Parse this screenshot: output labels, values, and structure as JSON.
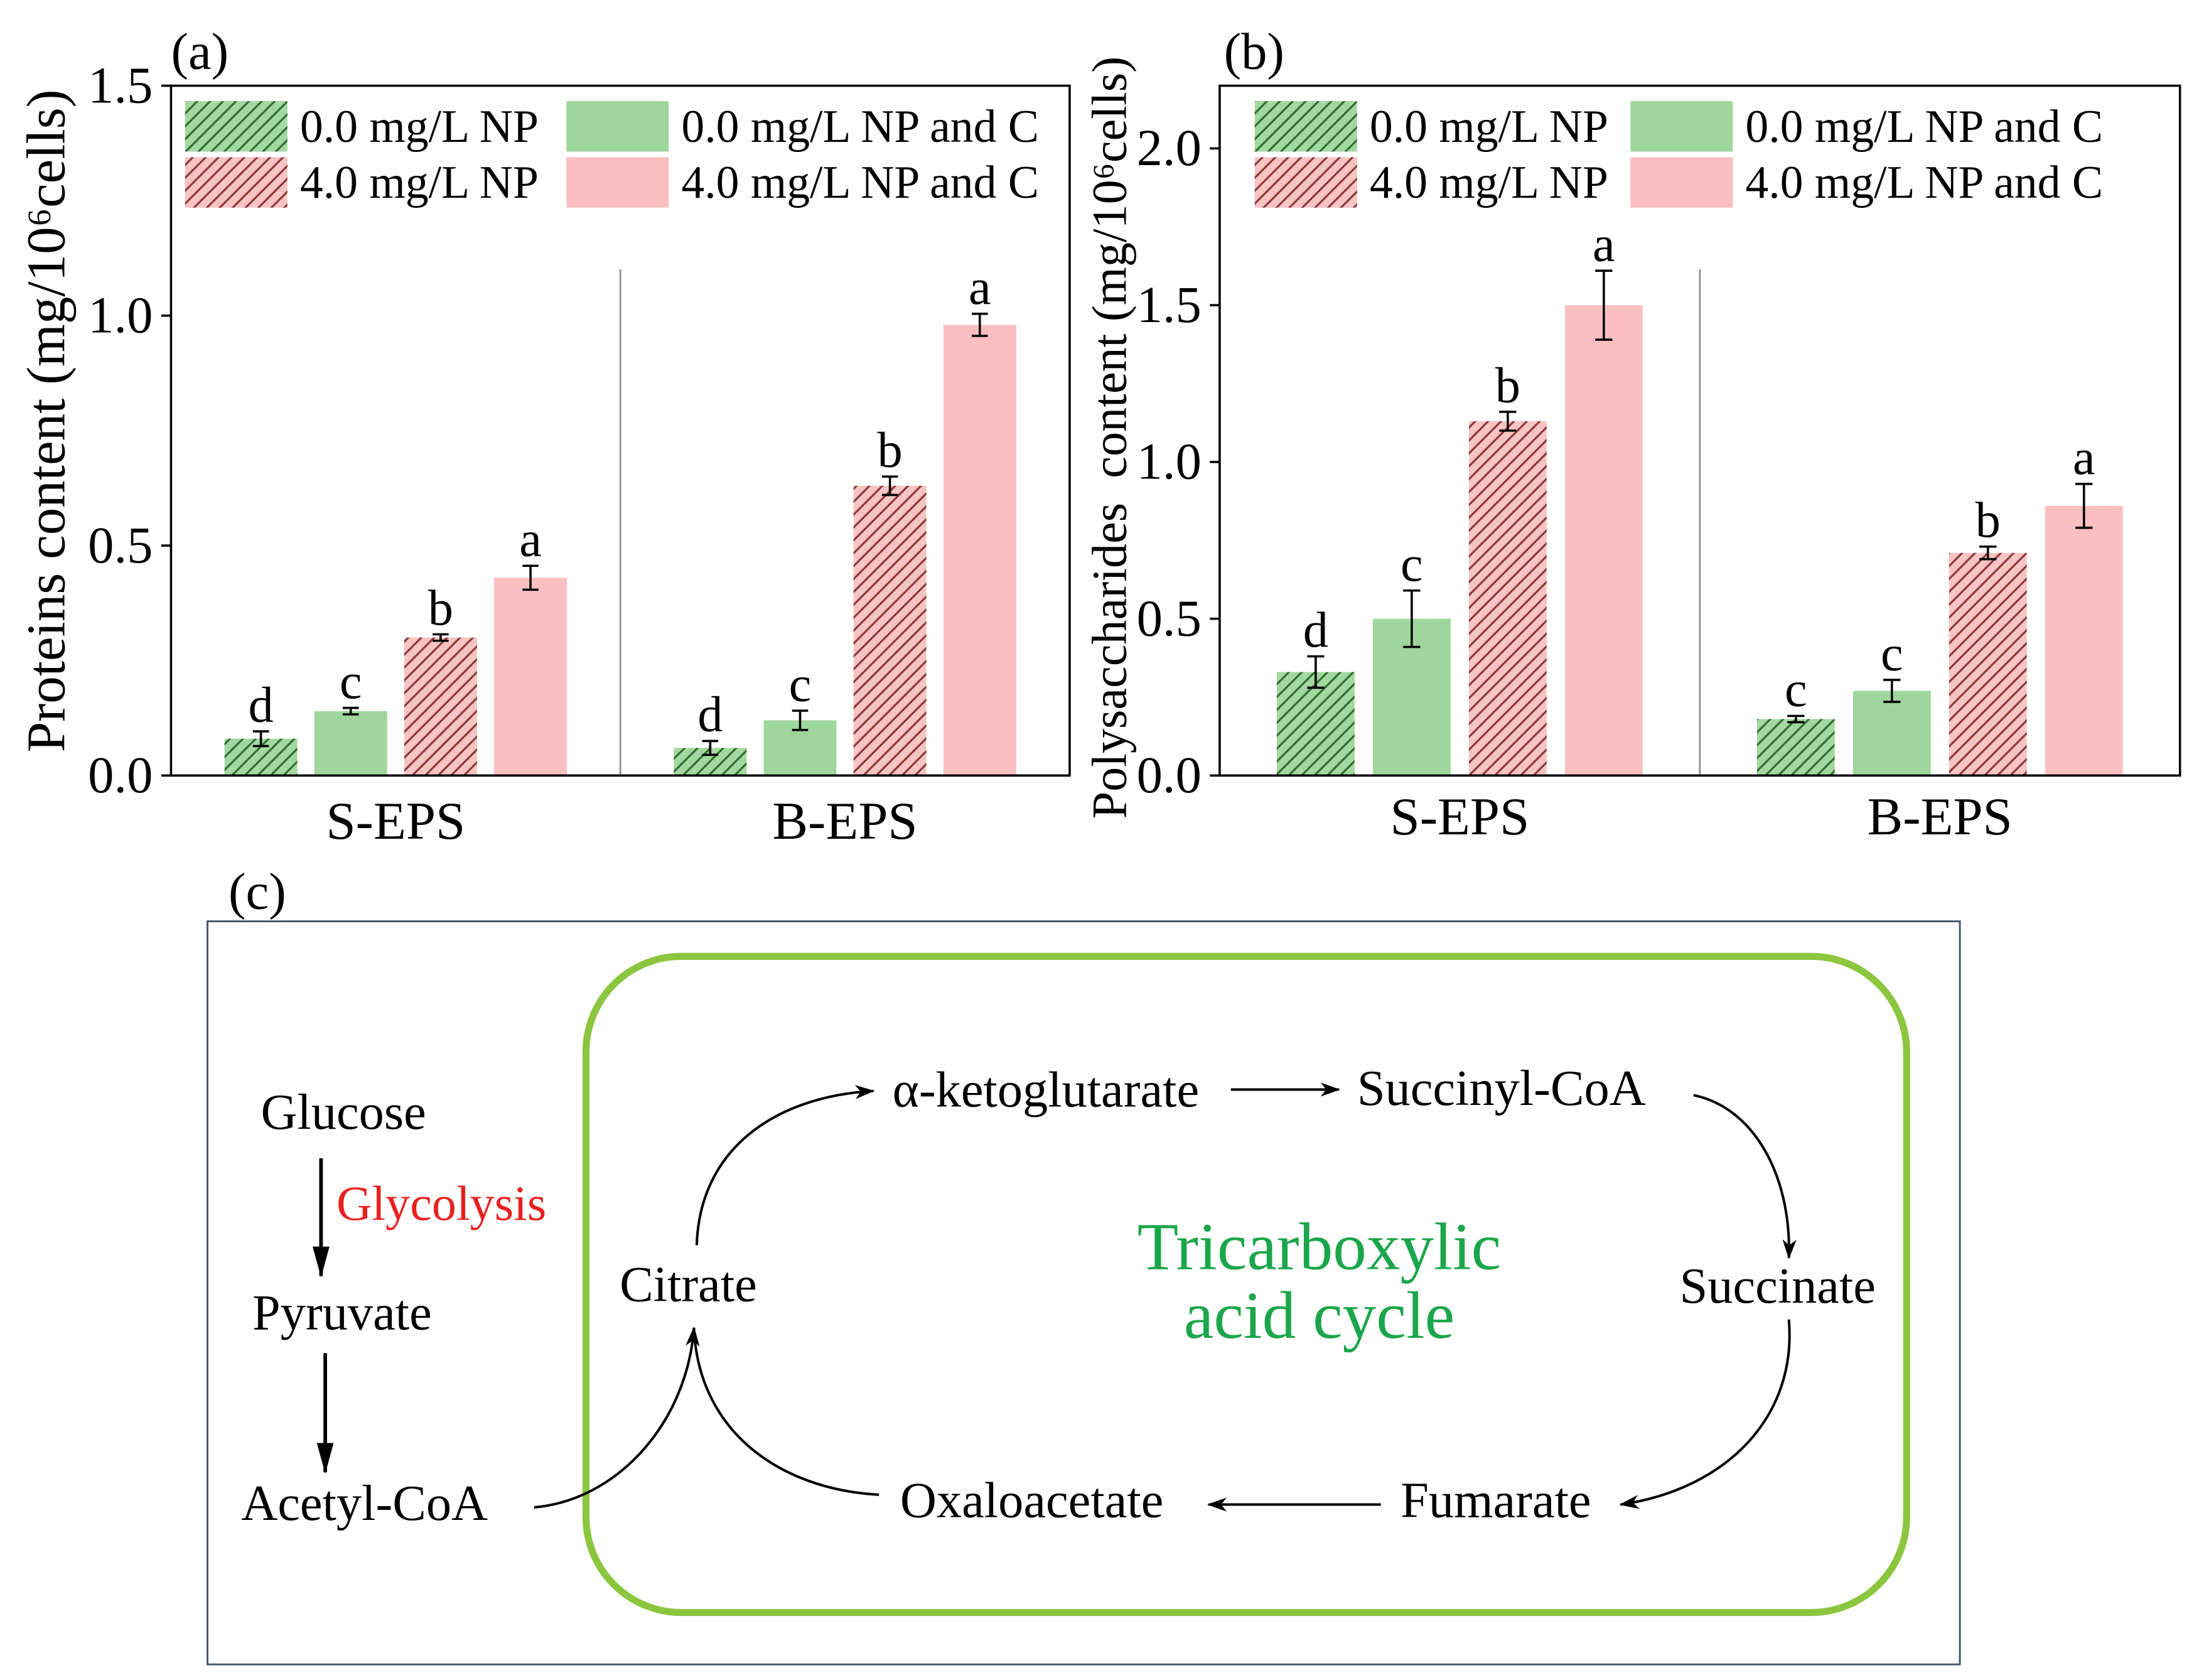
{
  "chart_data": [
    {
      "panel_label": "(a)",
      "type": "bar",
      "ylabel": "Proteins content (mg/10⁶cells)",
      "categories": [
        "S-EPS",
        "B-EPS"
      ],
      "ylim": [
        0,
        1.5
      ],
      "yticks": [
        0.0,
        0.5,
        1.0,
        1.5
      ],
      "ytick_labels": [
        "0.0",
        "0.5",
        "1.0",
        "1.5"
      ],
      "grid": false,
      "legend": {
        "location": "top-left",
        "columns": 2
      },
      "series": [
        {
          "name": "0.0 mg/L NP",
          "color": "#a3d8a0",
          "hatch_color": "#2e6b2e",
          "values": [
            0.08,
            0.06
          ],
          "errors": [
            0.016,
            0.015
          ],
          "letters": [
            "d",
            "d"
          ]
        },
        {
          "name": "0.0 mg/L NP and C",
          "color": "#9fd69c",
          "values": [
            0.14,
            0.12
          ],
          "errors": [
            0.007,
            0.021
          ],
          "letters": [
            "c",
            "c"
          ]
        },
        {
          "name": "4.0 mg/L NP",
          "color": "#f7c4c4",
          "hatch_color": "#8c3535",
          "values": [
            0.3,
            0.63
          ],
          "errors": [
            0.007,
            0.02
          ],
          "letters": [
            "b",
            "b"
          ]
        },
        {
          "name": "4.0 mg/L NP and C",
          "color": "#fac0c1",
          "values": [
            0.43,
            0.98
          ],
          "errors": [
            0.026,
            0.024
          ],
          "letters": [
            "a",
            "a"
          ]
        }
      ]
    },
    {
      "panel_label": "(b)",
      "type": "bar",
      "ylabel": "Polysaccharides  content (mg/10⁶cells)",
      "categories": [
        "S-EPS",
        "B-EPS"
      ],
      "ylim": [
        0,
        2.2
      ],
      "yticks": [
        0.0,
        0.5,
        1.0,
        1.5,
        2.0
      ],
      "ytick_labels": [
        "0.0",
        "0.5",
        "1.0",
        "1.5",
        "2.0"
      ],
      "grid": false,
      "legend": {
        "location": "top-left",
        "columns": 2
      },
      "series": [
        {
          "name": "0.0 mg/L NP",
          "color": "#a3d8a0",
          "hatch_color": "#2e6b2e",
          "values": [
            0.33,
            0.18
          ],
          "errors": [
            0.05,
            0.01
          ],
          "letters": [
            "d",
            "c"
          ]
        },
        {
          "name": "0.0 mg/L NP and C",
          "color": "#9fd69c",
          "values": [
            0.5,
            0.27
          ],
          "errors": [
            0.09,
            0.035
          ],
          "letters": [
            "c",
            "c"
          ]
        },
        {
          "name": "4.0 mg/L NP",
          "color": "#f7c4c4",
          "hatch_color": "#8c3535",
          "values": [
            1.13,
            0.71
          ],
          "errors": [
            0.03,
            0.02
          ],
          "letters": [
            "b",
            "b"
          ]
        },
        {
          "name": "4.0 mg/L NP and C",
          "color": "#fac0c1",
          "values": [
            1.5,
            0.86
          ],
          "errors": [
            0.11,
            0.07
          ],
          "letters": [
            "a",
            "a"
          ]
        }
      ]
    }
  ],
  "diagram": {
    "panel_label": "(c)",
    "cycle_title_line1": "Tricarboxylic",
    "cycle_title_line2": "acid cycle",
    "glycolysis_label": "Glycolysis",
    "nodes": {
      "glucose": "Glucose",
      "pyruvate": "Pyruvate",
      "acetyl_coa": "Acetyl-CoA",
      "citrate": "Citrate",
      "alpha_ketoglutarate": "α-ketoglutarate",
      "succinyl_coa": "Succinyl-CoA",
      "succinate": "Succinate",
      "fumarate": "Fumarate",
      "oxaloacetate": "Oxaloacetate"
    },
    "colors": {
      "cycle_border": "#8cc63f",
      "cycle_title": "#1ba64b",
      "glycolysis": "#e8211f",
      "frame": "#44546a"
    }
  }
}
